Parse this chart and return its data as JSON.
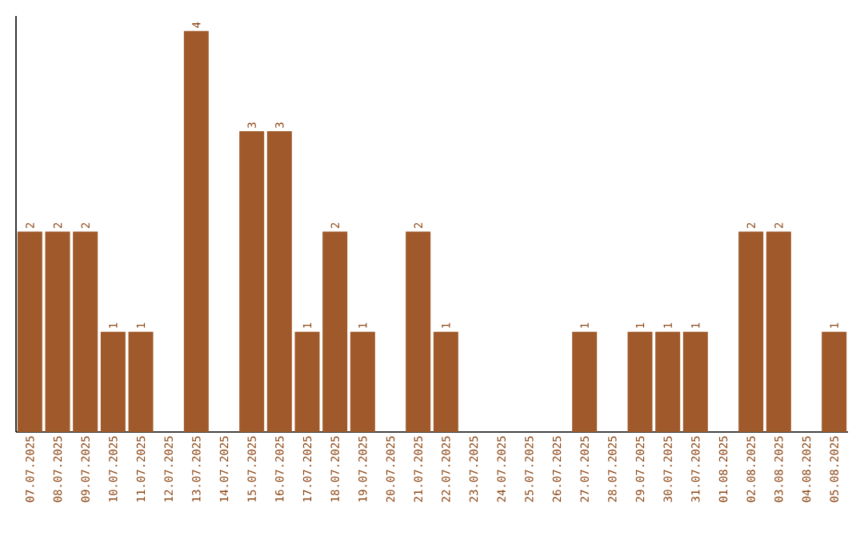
{
  "chart_data": {
    "type": "bar",
    "categories": [
      "07.07.2025",
      "08.07.2025",
      "09.07.2025",
      "10.07.2025",
      "11.07.2025",
      "12.07.2025",
      "13.07.2025",
      "14.07.2025",
      "15.07.2025",
      "16.07.2025",
      "17.07.2025",
      "18.07.2025",
      "19.07.2025",
      "20.07.2025",
      "21.07.2025",
      "22.07.2025",
      "23.07.2025",
      "24.07.2025",
      "25.07.2025",
      "26.07.2025",
      "27.07.2025",
      "28.07.2025",
      "29.07.2025",
      "30.07.2025",
      "31.07.2025",
      "01.08.2025",
      "02.08.2025",
      "03.08.2025",
      "04.08.2025",
      "05.08.2025"
    ],
    "values": [
      2,
      2,
      2,
      1,
      1,
      0,
      4,
      0,
      3,
      3,
      1,
      2,
      1,
      0,
      2,
      1,
      0,
      0,
      0,
      0,
      1,
      0,
      1,
      1,
      1,
      0,
      2,
      2,
      0,
      1
    ],
    "value_labels": [
      "2",
      "2",
      "2",
      "1",
      "1",
      null,
      "4",
      null,
      "3",
      "3",
      "1",
      "2",
      "1",
      null,
      "2",
      "1",
      null,
      null,
      null,
      null,
      "1",
      null,
      "1",
      "1",
      "1",
      null,
      "2",
      "2",
      null,
      "1"
    ],
    "color": "#a0592a",
    "ylim": [
      0,
      4.15
    ]
  }
}
